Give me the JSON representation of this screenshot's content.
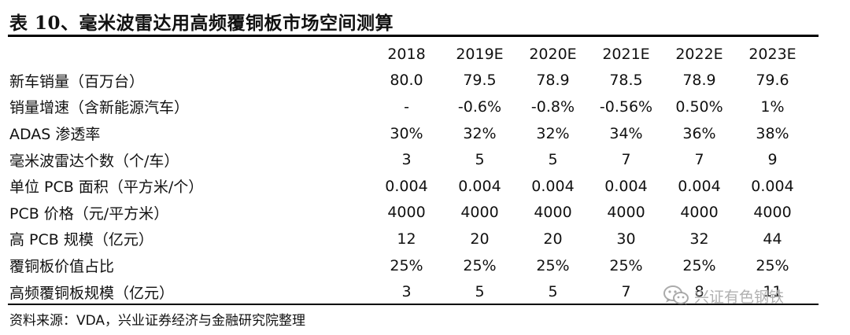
{
  "title": "表 10、毫米波雷达用高频覆铜板市场空间测算",
  "table": {
    "headers": [
      "",
      "2018",
      "2019E",
      "2020E",
      "2021E",
      "2022E",
      "2023E"
    ],
    "rows": [
      {
        "label": "新车销量（百万台）",
        "values": [
          "80.0",
          "79.5",
          "78.9",
          "78.5",
          "78.9",
          "79.6"
        ]
      },
      {
        "label": "销量增速（含新能源汽车）",
        "values": [
          "-",
          "-0.6%",
          "-0.8%",
          "-0.56%",
          "0.50%",
          "1%"
        ]
      },
      {
        "label": "ADAS 渗透率",
        "values": [
          "30%",
          "32%",
          "32%",
          "34%",
          "36%",
          "38%"
        ]
      },
      {
        "label": "毫米波雷达个数（个/车）",
        "values": [
          "3",
          "5",
          "5",
          "7",
          "7",
          "9"
        ]
      },
      {
        "label": "单位 PCB 面积（平方米/个）",
        "values": [
          "0.004",
          "0.004",
          "0.004",
          "0.004",
          "0.004",
          "0.004"
        ]
      },
      {
        "label": "PCB 价格（元/平方米）",
        "values": [
          "4000",
          "4000",
          "4000",
          "4000",
          "4000",
          "4000"
        ]
      },
      {
        "label": "高 PCB 规模（亿元）",
        "values": [
          "12",
          "20",
          "20",
          "30",
          "32",
          "44"
        ]
      },
      {
        "label": "覆铜板价值占比",
        "values": [
          "25%",
          "25%",
          "25%",
          "25%",
          "25%",
          "25%"
        ]
      },
      {
        "label": "高频覆铜板规模（亿元）",
        "values": [
          "3",
          "5",
          "5",
          "7",
          "8",
          "11"
        ]
      }
    ]
  },
  "source": "资料来源：VDA，兴业证券经济与金融研究院整理",
  "watermark": {
    "text": "兴证有色钢铁",
    "icon": "wechat-icon"
  }
}
